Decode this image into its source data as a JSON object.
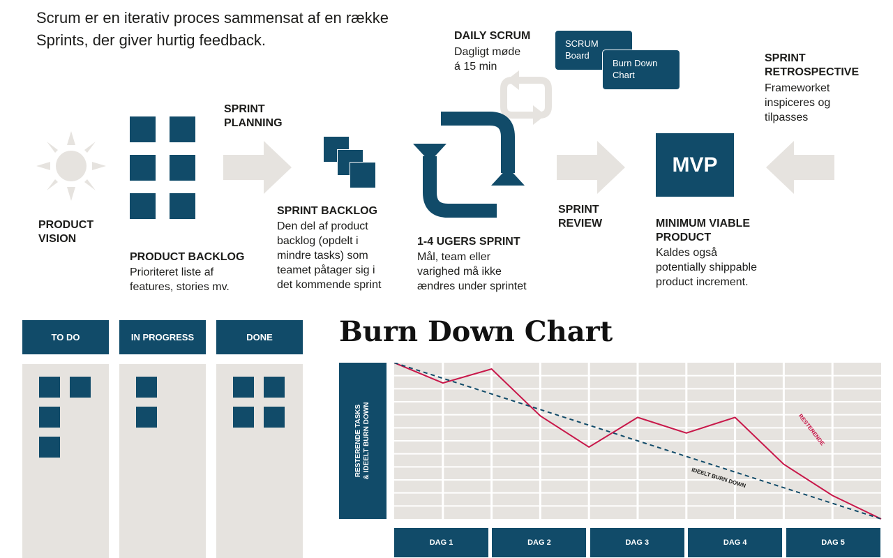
{
  "intro": "Scrum er en iterativ proces sammensat af en række Sprints, der giver hurtig feedback.",
  "colors": {
    "navy": "#114b69",
    "arrow_gray": "#e6e3df",
    "remaining_line": "#c8184a"
  },
  "icons": [
    "sun-icon",
    "arrow-right-icon",
    "cycle-icon",
    "small-cycle-icon",
    "arrow-left-icon"
  ],
  "product_vision": {
    "title": "PRODUCT\nVISION"
  },
  "product_backlog": {
    "title": "PRODUCT BACKLOG",
    "text": "Prioriteret liste af\nfeatures, stories mv."
  },
  "sprint_planning": {
    "title": "SPRINT\nPLANNING"
  },
  "sprint_backlog": {
    "title": "SPRINT BACKLOG",
    "text": "Den del af product\nbacklog (opdelt i\nmindre tasks) som\nteamet påtager sig i\ndet kommende sprint"
  },
  "daily_scrum": {
    "title": "DAILY SCRUM",
    "text": "Dagligt møde\ná 15 min"
  },
  "scrum_board_box": "SCRUM\nBoard",
  "burn_down_box": "Burn Down\nChart",
  "sprint": {
    "title": "1-4 UGERS SPRINT",
    "text": "Mål, team eller\nvarighed må ikke\nændres under sprintet"
  },
  "sprint_review": {
    "title": "SPRINT\nREVIEW"
  },
  "mvp": {
    "label": "MVP",
    "title": "MINIMUM VIABLE\nPRODUCT",
    "text": "Kaldes også\npotentially shippable\nproduct increment."
  },
  "retrospective": {
    "title": "SPRINT\nRETROSPECTIVE",
    "text": "Frameworket\ninspiceres og\ntilpasses"
  },
  "board": {
    "columns": [
      {
        "label": "TO DO",
        "cards": 4
      },
      {
        "label": "IN PROGRESS",
        "cards": 2
      },
      {
        "label": "DONE",
        "cards": 4
      }
    ]
  },
  "chart_data": {
    "type": "line",
    "title": "Burn Down Chart",
    "ylabel": "RESTERENDE TASKS\n& IDEELT BURN DOWN",
    "categories": [
      "DAG 1",
      "DAG 2",
      "DAG 3",
      "DAG 4",
      "DAG 5"
    ],
    "x": [
      0,
      0.5,
      1,
      1.5,
      2,
      2.5,
      3,
      3.5,
      4,
      4.5,
      5
    ],
    "ylim": [
      0,
      10
    ],
    "grid": true,
    "series": [
      {
        "name": "RESTERENDE",
        "values": [
          10,
          8.7,
          9.6,
          6.6,
          4.6,
          6.5,
          5.5,
          6.5,
          3.5,
          1.5,
          0
        ]
      },
      {
        "name": "IDEELT BURN DOWN",
        "values": [
          10,
          9,
          8,
          7,
          6,
          5,
          4,
          3,
          2,
          1,
          0
        ]
      }
    ]
  }
}
